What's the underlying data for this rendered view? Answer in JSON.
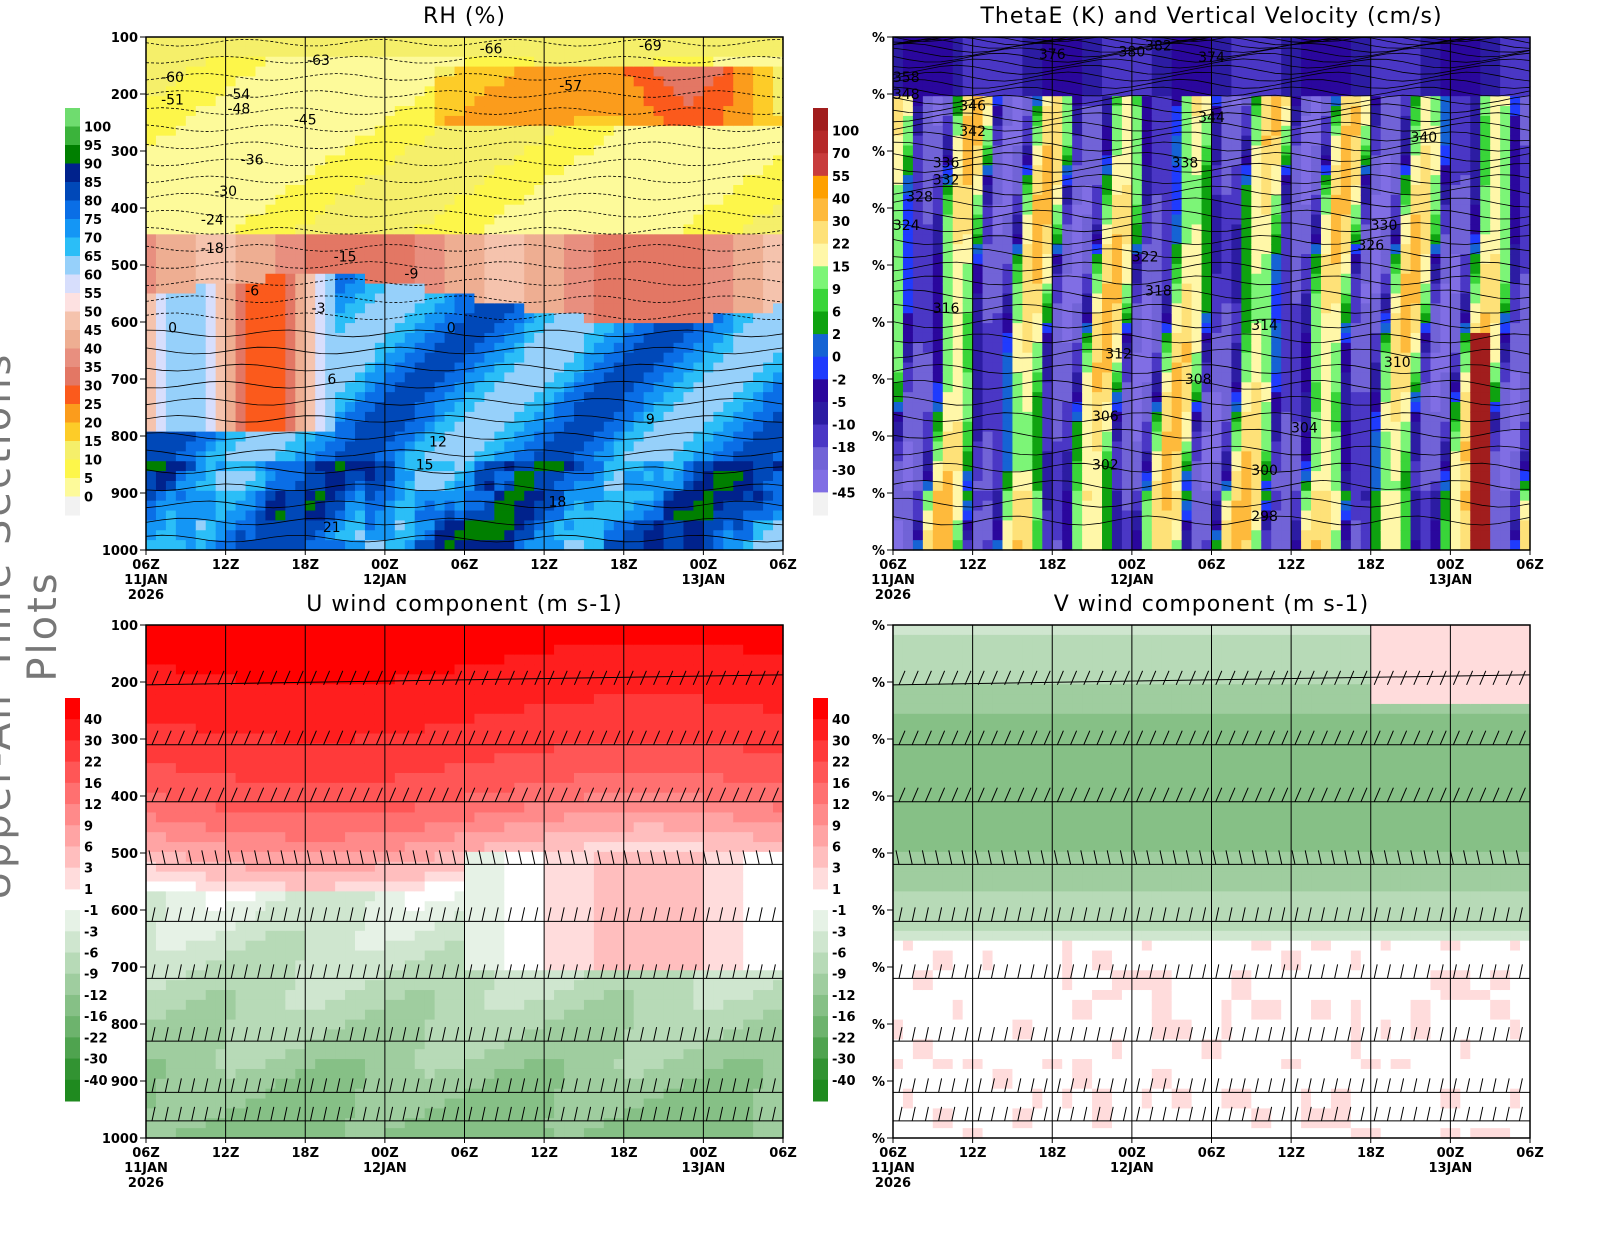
{
  "page": {
    "side_title": "Upper-Air Time Sections Plots"
  },
  "time_axis": {
    "ticks": [
      "06Z",
      "12Z",
      "18Z",
      "00Z",
      "06Z",
      "12Z",
      "18Z",
      "00Z",
      "06Z"
    ],
    "hours": [
      0,
      6,
      12,
      18,
      24,
      30,
      36,
      42,
      48
    ],
    "dates": [
      {
        "index": 0,
        "day": "11JAN",
        "year": "2026"
      },
      {
        "index": 3,
        "day": "12JAN"
      },
      {
        "index": 7,
        "day": "13JAN"
      }
    ]
  },
  "chart_data": [
    {
      "type": "heatmap",
      "title": "RH (%)",
      "ylim": [
        100,
        1000
      ],
      "yticks": [
        "100",
        "200",
        "300",
        "400",
        "500",
        "600",
        "700",
        "800",
        "900",
        "1000"
      ],
      "colorbar": {
        "labels": [
          "100",
          "95",
          "90",
          "85",
          "80",
          "75",
          "70",
          "65",
          "60",
          "55",
          "50",
          "45",
          "40",
          "35",
          "30",
          "25",
          "20",
          "15",
          "10",
          "5",
          "0"
        ],
        "colors": [
          "#6fdc6f",
          "#3bb33b",
          "#007f00",
          "#00228c",
          "#0048b8",
          "#0a6ee6",
          "#1496f5",
          "#2bbef7",
          "#96d0fa",
          "#d7defc",
          "#fde1e1",
          "#f5c3ad",
          "#eeae92",
          "#e88f7f",
          "#e37764",
          "#fb5a1c",
          "#fb9c1c",
          "#fdcc28",
          "#f5ef6a",
          "#fdf64a",
          "#fdfa9a",
          "#f2f2f2"
        ]
      },
      "contour_labels": [
        {
          "v": "-63",
          "h": 13,
          "p": 140
        },
        {
          "v": "-66",
          "h": 26,
          "p": 120
        },
        {
          "v": "-69",
          "h": 38,
          "p": 115
        },
        {
          "v": "-60",
          "h": 2,
          "p": 170
        },
        {
          "v": "-51",
          "h": 2,
          "p": 210
        },
        {
          "v": "-54",
          "h": 7,
          "p": 200
        },
        {
          "v": "-48",
          "h": 7,
          "p": 225
        },
        {
          "v": "-45",
          "h": 12,
          "p": 245
        },
        {
          "v": "-57",
          "h": 32,
          "p": 185
        },
        {
          "v": "-36",
          "h": 8,
          "p": 315
        },
        {
          "v": "-30",
          "h": 6,
          "p": 370
        },
        {
          "v": "-24",
          "h": 5,
          "p": 420
        },
        {
          "v": "-18",
          "h": 5,
          "p": 470
        },
        {
          "v": "-15",
          "h": 15,
          "p": 485
        },
        {
          "v": "-9",
          "h": 20,
          "p": 515
        },
        {
          "v": "-6",
          "h": 8,
          "p": 545
        },
        {
          "v": "-3",
          "h": 13,
          "p": 575
        },
        {
          "v": "0",
          "h": 2,
          "p": 610
        },
        {
          "v": "0",
          "h": 23,
          "p": 610
        },
        {
          "v": "6",
          "h": 14,
          "p": 700
        },
        {
          "v": "9",
          "h": 38,
          "p": 770
        },
        {
          "v": "12",
          "h": 22,
          "p": 810
        },
        {
          "v": "15",
          "h": 21,
          "p": 850
        },
        {
          "v": "18",
          "h": 31,
          "p": 915
        },
        {
          "v": "21",
          "h": 14,
          "p": 960
        }
      ]
    },
    {
      "type": "heatmap",
      "title": "ThetaE (K) and Vertical Velocity (cm/s)",
      "ylim": [
        100,
        1000
      ],
      "yticks": [
        "%",
        "%",
        "%",
        "%",
        "%",
        "%",
        "%",
        "%",
        "%",
        "%"
      ],
      "colorbar": {
        "labels": [
          "100",
          "70",
          "55",
          "40",
          "30",
          "22",
          "15",
          "9",
          "6",
          "2",
          "0",
          "-2",
          "-5",
          "-10",
          "-18",
          "-30",
          "-45"
        ],
        "colors": [
          "#a11d1d",
          "#b52828",
          "#c83c3c",
          "#fea000",
          "#feba3c",
          "#fee178",
          "#fff7a8",
          "#7cf577",
          "#39d539",
          "#0ea210",
          "#1563d4",
          "#1f3bfd",
          "#2a079d",
          "#2c1ca3",
          "#4a37c5",
          "#7163d7",
          "#806ee4",
          "#f2f2f2"
        ]
      },
      "contour_labels": [
        {
          "v": "358",
          "h": 1,
          "p": 170
        },
        {
          "v": "348",
          "h": 1,
          "p": 200
        },
        {
          "v": "346",
          "h": 6,
          "p": 220
        },
        {
          "v": "342",
          "h": 6,
          "p": 265
        },
        {
          "v": "336",
          "h": 4,
          "p": 320
        },
        {
          "v": "332",
          "h": 4,
          "p": 350
        },
        {
          "v": "328",
          "h": 2,
          "p": 380
        },
        {
          "v": "324",
          "h": 1,
          "p": 430
        },
        {
          "v": "376",
          "h": 12,
          "p": 130
        },
        {
          "v": "380",
          "h": 18,
          "p": 125
        },
        {
          "v": "382",
          "h": 20,
          "p": 115
        },
        {
          "v": "374",
          "h": 24,
          "p": 135
        },
        {
          "v": "338",
          "h": 22,
          "p": 320
        },
        {
          "v": "344",
          "h": 24,
          "p": 240
        },
        {
          "v": "322",
          "h": 19,
          "p": 485
        },
        {
          "v": "318",
          "h": 20,
          "p": 545
        },
        {
          "v": "316",
          "h": 4,
          "p": 575
        },
        {
          "v": "312",
          "h": 17,
          "p": 655
        },
        {
          "v": "308",
          "h": 23,
          "p": 700
        },
        {
          "v": "306",
          "h": 16,
          "p": 765
        },
        {
          "v": "302",
          "h": 16,
          "p": 850
        },
        {
          "v": "304",
          "h": 31,
          "p": 785
        },
        {
          "v": "300",
          "h": 28,
          "p": 860
        },
        {
          "v": "298",
          "h": 28,
          "p": 940
        },
        {
          "v": "340",
          "h": 40,
          "p": 275
        },
        {
          "v": "330",
          "h": 37,
          "p": 430
        },
        {
          "v": "326",
          "h": 36,
          "p": 465
        },
        {
          "v": "314",
          "h": 28,
          "p": 605
        },
        {
          "v": "310",
          "h": 38,
          "p": 670
        }
      ]
    },
    {
      "type": "heatmap",
      "title": "U wind component (m s-1)",
      "ylim": [
        100,
        1000
      ],
      "yticks": [
        "100",
        "200",
        "300",
        "400",
        "500",
        "600",
        "700",
        "800",
        "900",
        "1000"
      ],
      "colorbar": {
        "labels": [
          "40",
          "30",
          "22",
          "16",
          "12",
          "9",
          "6",
          "3",
          "1",
          "-1",
          "-3",
          "-6",
          "-9",
          "-12",
          "-16",
          "-22",
          "-30",
          "-40"
        ],
        "colors": [
          "#ff0000",
          "#ff1e1e",
          "#ff3a3a",
          "#ff5656",
          "#ff7070",
          "#ff8a8a",
          "#ffa4a4",
          "#ffbebe",
          "#ffdcdc",
          "#ffffff",
          "#e6f2e6",
          "#cfe6cf",
          "#b7dab7",
          "#9fcd9f",
          "#86c086",
          "#6db36d",
          "#4fa34f",
          "#329332",
          "#1f8a1f"
        ]
      }
    },
    {
      "type": "heatmap",
      "title": "V wind component (m s-1)",
      "ylim": [
        100,
        1000
      ],
      "yticks": [
        "%",
        "%",
        "%",
        "%",
        "%",
        "%",
        "%",
        "%",
        "%",
        "%"
      ],
      "colorbar": {
        "labels": [
          "40",
          "30",
          "22",
          "16",
          "12",
          "9",
          "6",
          "3",
          "1",
          "-1",
          "-3",
          "-6",
          "-9",
          "-12",
          "-16",
          "-22",
          "-30",
          "-40"
        ],
        "colors": [
          "#ff0000",
          "#ff1e1e",
          "#ff3a3a",
          "#ff5656",
          "#ff7070",
          "#ff8a8a",
          "#ffa4a4",
          "#ffbebe",
          "#ffdcdc",
          "#ffffff",
          "#e6f2e6",
          "#cfe6cf",
          "#b7dab7",
          "#9fcd9f",
          "#86c086",
          "#6db36d",
          "#4fa34f",
          "#329332",
          "#1f8a1f"
        ]
      }
    }
  ]
}
